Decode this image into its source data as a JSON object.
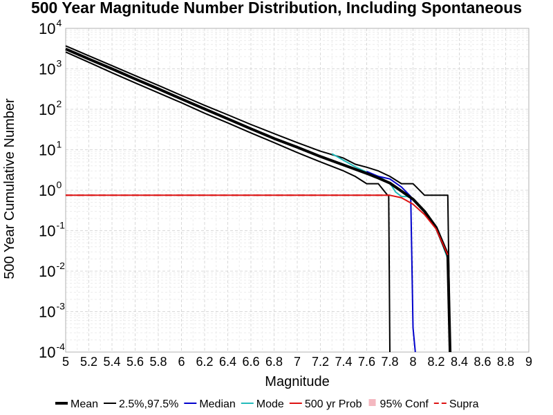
{
  "chart_data": {
    "type": "line",
    "title": "500 Year Magnitude Number Distribution, Including Spontaneous",
    "xlabel": "Magnitude",
    "ylabel": "500 Year Cumulative Number",
    "xlim": [
      5,
      9
    ],
    "ylim": [
      0.0001,
      10000
    ],
    "yscale": "log",
    "grid": true,
    "x_ticks": [
      5,
      5.2,
      5.4,
      5.6,
      5.8,
      6,
      6.2,
      6.4,
      6.6,
      6.8,
      7,
      7.2,
      7.4,
      7.6,
      7.8,
      8,
      8.2,
      8.4,
      8.6,
      8.8,
      9
    ],
    "x_tick_labels": [
      "5",
      "5.2",
      "5.4",
      "5.6",
      "5.8",
      "6",
      "6.2",
      "6.4",
      "6.6",
      "6.8",
      "7",
      "7.2",
      "7.4",
      "7.6",
      "7.8",
      "8",
      "8.2",
      "8.4",
      "8.6",
      "8.8",
      "9"
    ],
    "y_ticks": [
      {
        "base": "10",
        "exp": "4",
        "value": 10000
      },
      {
        "base": "10",
        "exp": "3",
        "value": 1000
      },
      {
        "base": "10",
        "exp": "2",
        "value": 100
      },
      {
        "base": "10",
        "exp": "1",
        "value": 10
      },
      {
        "base": "10",
        "exp": "0",
        "value": 1
      },
      {
        "base": "10",
        "exp": "-1",
        "value": 0.1
      },
      {
        "base": "10",
        "exp": "-2",
        "value": 0.01
      },
      {
        "base": "10",
        "exp": "-3",
        "value": 0.001
      },
      {
        "base": "10",
        "exp": "-4",
        "value": 0.0001
      }
    ],
    "legend_position": "bottom",
    "legend": [
      {
        "label": "Mean",
        "color": "#000000",
        "style": "thick-line"
      },
      {
        "label": "2.5%,97.5%",
        "color": "#000000",
        "style": "line"
      },
      {
        "label": "Median",
        "color": "#0000cc",
        "style": "line"
      },
      {
        "label": "Mode",
        "color": "#22bbbb",
        "style": "line"
      },
      {
        "label": "500 yr Prob",
        "color": "#dd1111",
        "style": "line"
      },
      {
        "label": "95% Conf",
        "color": "#f4b8c0",
        "style": "square"
      },
      {
        "label": "Supra",
        "color": "#dd1111",
        "style": "dashed"
      }
    ],
    "series": [
      {
        "id": "upper",
        "color": "#000000",
        "width": 2,
        "x": [
          5,
          5.2,
          5.4,
          5.6,
          5.8,
          6,
          6.2,
          6.4,
          6.6,
          6.8,
          7,
          7.2,
          7.4,
          7.5,
          7.6,
          7.7,
          7.8,
          7.9,
          8,
          8.1,
          8.2,
          8.3,
          8.32
        ],
        "y": [
          3700,
          2100,
          1200,
          680,
          390,
          220,
          125,
          73,
          42,
          25,
          15,
          9.2,
          6.2,
          4.4,
          3.7,
          3.0,
          2.2,
          1.45,
          1.45,
          0.75,
          0.75,
          0.75,
          0.0001
        ]
      },
      {
        "id": "lower",
        "color": "#000000",
        "width": 2,
        "x": [
          5,
          5.2,
          5.4,
          5.6,
          5.8,
          6,
          6.2,
          6.4,
          6.6,
          6.8,
          7,
          7.2,
          7.4,
          7.5,
          7.6,
          7.7,
          7.78,
          7.79,
          7.8
        ],
        "y": [
          2600,
          1450,
          800,
          450,
          255,
          145,
          80,
          46,
          26,
          15,
          8.5,
          5.0,
          3.0,
          2.2,
          1.45,
          1.45,
          0.75,
          0.75,
          0.0001
        ]
      },
      {
        "id": "mode",
        "color": "#22bbbb",
        "width": 2,
        "x": [
          7.3,
          7.4,
          7.5,
          7.6,
          7.7,
          7.8,
          7.85,
          7.9,
          7.95,
          8.0,
          8.1,
          8.2,
          8.3
        ],
        "y": [
          8.0,
          5.5,
          3.8,
          2.8,
          2.2,
          1.5,
          0.9,
          0.7,
          0.7,
          0.6,
          0.3,
          0.12,
          0.02
        ]
      },
      {
        "id": "median",
        "color": "#0000cc",
        "width": 2,
        "x": [
          7.6,
          7.7,
          7.8,
          7.9,
          7.98,
          8.0,
          8.02
        ],
        "y": [
          2.9,
          2.2,
          1.9,
          1.2,
          0.7,
          0.0004,
          0.0001
        ]
      },
      {
        "id": "mean",
        "color": "#000000",
        "width": 4,
        "x": [
          5,
          5.2,
          5.4,
          5.6,
          5.8,
          6,
          6.2,
          6.4,
          6.6,
          6.8,
          7,
          7.2,
          7.4,
          7.6,
          7.7,
          7.8,
          7.9,
          8,
          8.1,
          8.2,
          8.3,
          8.32
        ],
        "y": [
          3100,
          1750,
          1000,
          560,
          320,
          180,
          102,
          58,
          33,
          19,
          11.5,
          6.8,
          4.2,
          2.6,
          2.0,
          1.5,
          0.95,
          0.6,
          0.3,
          0.12,
          0.025,
          0.0001
        ]
      },
      {
        "id": "prob500",
        "color": "#dd1111",
        "width": 2,
        "x": [
          5,
          5.5,
          6,
          6.5,
          7,
          7.5,
          7.8,
          7.9,
          8.0,
          8.1,
          8.2,
          8.3
        ],
        "y": [
          0.75,
          0.75,
          0.75,
          0.75,
          0.75,
          0.75,
          0.75,
          0.65,
          0.45,
          0.25,
          0.11,
          0.025
        ]
      },
      {
        "id": "supra",
        "color": "#dd1111",
        "width": 2,
        "dashed": true,
        "x": [
          5,
          5.5,
          6,
          6.5,
          7,
          7.5,
          7.8
        ],
        "y": [
          0.75,
          0.75,
          0.75,
          0.75,
          0.75,
          0.75,
          0.75
        ]
      }
    ]
  }
}
